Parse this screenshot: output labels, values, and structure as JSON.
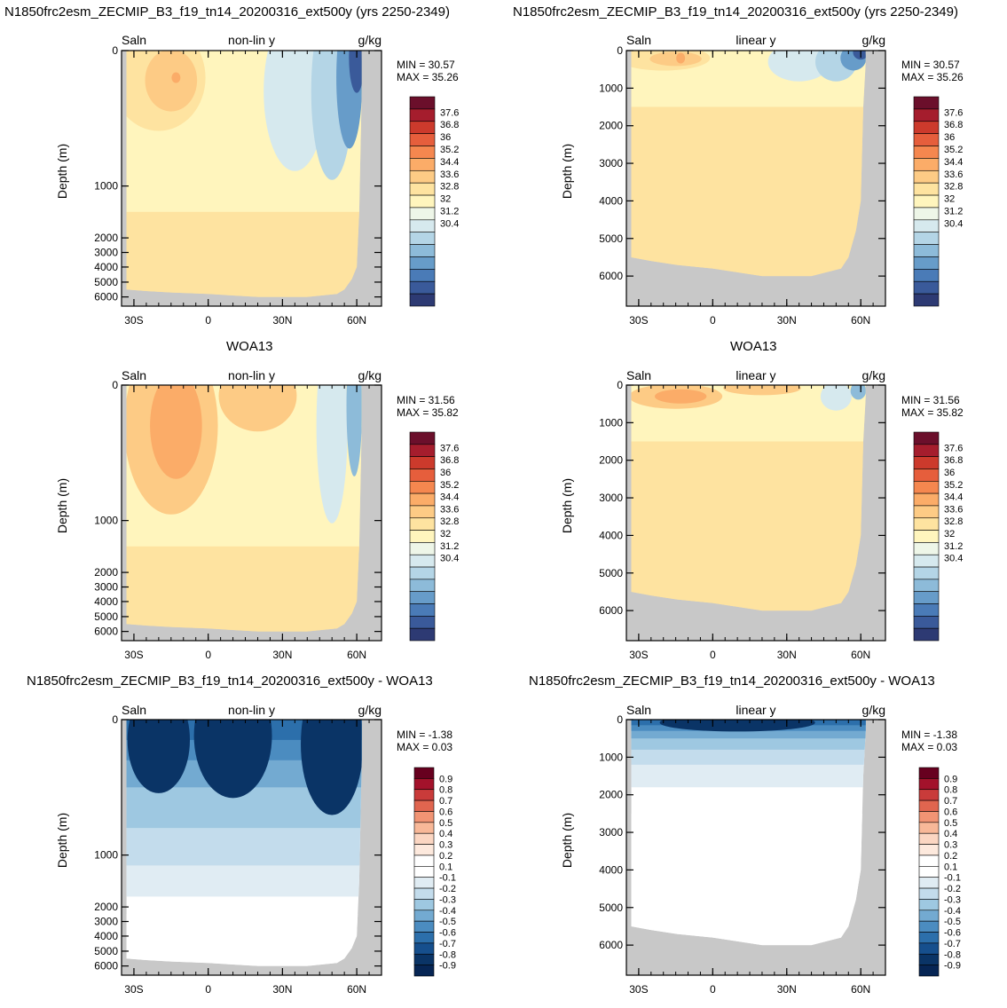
{
  "panels": [
    {
      "title": "N1850frc2esm_ZECMIP_B3_f19_tn14_20200316_ext500y (yrs 2250-2349)",
      "field": "Saln",
      "mode": "non-lin y",
      "units": "g/kg",
      "min_line": "MIN =  30.57",
      "max_line": "MAX =  35.26",
      "ylabel": "Depth (m)",
      "yticks": [
        "0",
        "1000",
        "2000",
        "3000",
        "4000",
        "5000",
        "6000"
      ],
      "xticks": [
        "30S",
        "0",
        "30N",
        "60N"
      ],
      "colorbar": [
        "37.6",
        "36.8",
        "36",
        "35.2",
        "34.4",
        "33.6",
        "32.8",
        "32",
        "31.2",
        "30.4"
      ]
    },
    {
      "title": "N1850frc2esm_ZECMIP_B3_f19_tn14_20200316_ext500y (yrs 2250-2349)",
      "field": "Saln",
      "mode": "linear y",
      "units": "g/kg",
      "min_line": "MIN =  30.57",
      "max_line": "MAX =  35.26",
      "ylabel": "Depth (m)",
      "yticks": [
        "0",
        "1000",
        "2000",
        "3000",
        "4000",
        "5000",
        "6000"
      ],
      "xticks": [
        "30S",
        "0",
        "30N",
        "60N"
      ],
      "colorbar": [
        "37.6",
        "36.8",
        "36",
        "35.2",
        "34.4",
        "33.6",
        "32.8",
        "32",
        "31.2",
        "30.4"
      ]
    },
    {
      "title": "WOA13",
      "field": "Saln",
      "mode": "non-lin y",
      "units": "g/kg",
      "min_line": "MIN =  31.56",
      "max_line": "MAX =  35.82",
      "ylabel": "Depth (m)",
      "yticks": [
        "0",
        "1000",
        "2000",
        "3000",
        "4000",
        "5000",
        "6000"
      ],
      "xticks": [
        "30S",
        "0",
        "30N",
        "60N"
      ],
      "colorbar": [
        "37.6",
        "36.8",
        "36",
        "35.2",
        "34.4",
        "33.6",
        "32.8",
        "32",
        "31.2",
        "30.4"
      ]
    },
    {
      "title": "WOA13",
      "field": "Saln",
      "mode": "linear y",
      "units": "g/kg",
      "min_line": "MIN =  31.56",
      "max_line": "MAX =  35.82",
      "ylabel": "Depth (m)",
      "yticks": [
        "0",
        "1000",
        "2000",
        "3000",
        "4000",
        "5000",
        "6000"
      ],
      "xticks": [
        "30S",
        "0",
        "30N",
        "60N"
      ],
      "colorbar": [
        "37.6",
        "36.8",
        "36",
        "35.2",
        "34.4",
        "33.6",
        "32.8",
        "32",
        "31.2",
        "30.4"
      ]
    },
    {
      "title": "N1850frc2esm_ZECMIP_B3_f19_tn14_20200316_ext500y - WOA13",
      "field": "Saln",
      "mode": "non-lin y",
      "units": "g/kg",
      "min_line": "MIN =  -1.38",
      "max_line": "MAX =   0.03",
      "ylabel": "Depth (m)",
      "yticks": [
        "0",
        "1000",
        "2000",
        "3000",
        "4000",
        "5000",
        "6000"
      ],
      "xticks": [
        "30S",
        "0",
        "30N",
        "60N"
      ],
      "colorbar": [
        "0.9",
        "0.8",
        "0.7",
        "0.6",
        "0.5",
        "0.4",
        "0.3",
        "0.2",
        "0.1",
        "-0.1",
        "-0.2",
        "-0.3",
        "-0.4",
        "-0.5",
        "-0.6",
        "-0.7",
        "-0.8",
        "-0.9"
      ]
    },
    {
      "title": "N1850frc2esm_ZECMIP_B3_f19_tn14_20200316_ext500y - WOA13",
      "field": "Saln",
      "mode": "linear y",
      "units": "g/kg",
      "min_line": "MIN =  -1.38",
      "max_line": "MAX =   0.03",
      "ylabel": "Depth (m)",
      "yticks": [
        "0",
        "1000",
        "2000",
        "3000",
        "4000",
        "5000",
        "6000"
      ],
      "xticks": [
        "30S",
        "0",
        "30N",
        "60N"
      ],
      "colorbar": [
        "0.9",
        "0.8",
        "0.7",
        "0.6",
        "0.5",
        "0.4",
        "0.3",
        "0.2",
        "0.1",
        "-0.1",
        "-0.2",
        "-0.3",
        "-0.4",
        "-0.5",
        "-0.6",
        "-0.7",
        "-0.8",
        "-0.9"
      ]
    }
  ],
  "chart_data": [
    {
      "type": "heatmap",
      "title": "N1850frc2esm_ZECMIP_B3_f19_tn14_20200316_ext500y (yrs 2250-2349)",
      "xlabel": "",
      "ylabel": "Depth (m)",
      "x_range": [
        "35S",
        "70N"
      ],
      "ylim": [
        0,
        6500
      ],
      "y_scale": "non-linear",
      "min": 30.57,
      "max": 35.26
    },
    {
      "type": "heatmap",
      "title": "N1850frc2esm_ZECMIP_B3_f19_tn14_20200316_ext500y (yrs 2250-2349)",
      "xlabel": "",
      "ylabel": "Depth (m)",
      "x_range": [
        "35S",
        "70N"
      ],
      "ylim": [
        0,
        6500
      ],
      "y_scale": "linear",
      "min": 30.57,
      "max": 35.26
    },
    {
      "type": "heatmap",
      "title": "WOA13",
      "xlabel": "",
      "ylabel": "Depth (m)",
      "x_range": [
        "35S",
        "70N"
      ],
      "ylim": [
        0,
        6500
      ],
      "y_scale": "non-linear",
      "min": 31.56,
      "max": 35.82
    },
    {
      "type": "heatmap",
      "title": "WOA13",
      "xlabel": "",
      "ylabel": "Depth (m)",
      "x_range": [
        "35S",
        "70N"
      ],
      "ylim": [
        0,
        6500
      ],
      "y_scale": "linear",
      "min": 31.56,
      "max": 35.82
    },
    {
      "type": "heatmap",
      "title": "N1850frc2esm_ZECMIP_B3_f19_tn14_20200316_ext500y - WOA13",
      "xlabel": "",
      "ylabel": "Depth (m)",
      "x_range": [
        "35S",
        "70N"
      ],
      "ylim": [
        0,
        6500
      ],
      "y_scale": "non-linear",
      "min": -1.38,
      "max": 0.03
    },
    {
      "type": "heatmap",
      "title": "N1850frc2esm_ZECMIP_B3_f19_tn14_20200316_ext500y - WOA13",
      "xlabel": "",
      "ylabel": "Depth (m)",
      "x_range": [
        "35S",
        "70N"
      ],
      "ylim": [
        0,
        6500
      ],
      "y_scale": "linear",
      "min": -1.38,
      "max": 0.03
    }
  ],
  "colors": {
    "land": "#c8c8c8",
    "salt_scale": [
      "#6b0f2b",
      "#a51d2d",
      "#cc3a2c",
      "#e65e3c",
      "#f5874f",
      "#fbac68",
      "#fdcb85",
      "#fee3a0",
      "#fff5bd",
      "#eef6e8",
      "#d6e9ee",
      "#b4d5e6",
      "#8dbbd9",
      "#679cc9",
      "#4a7bb7",
      "#3a5a9a",
      "#2d3a73"
    ],
    "diff_scale": [
      "#67001f",
      "#a3122b",
      "#c93b3a",
      "#e0654f",
      "#f19474",
      "#f8b898",
      "#fbd6c2",
      "#fde9dd",
      "#ffffff",
      "#ffffff",
      "#e0ecf3",
      "#c3dcec",
      "#9ec8e1",
      "#73aad1",
      "#4b8cc0",
      "#2c6fab",
      "#164f8d",
      "#0a3466",
      "#062554"
    ]
  }
}
